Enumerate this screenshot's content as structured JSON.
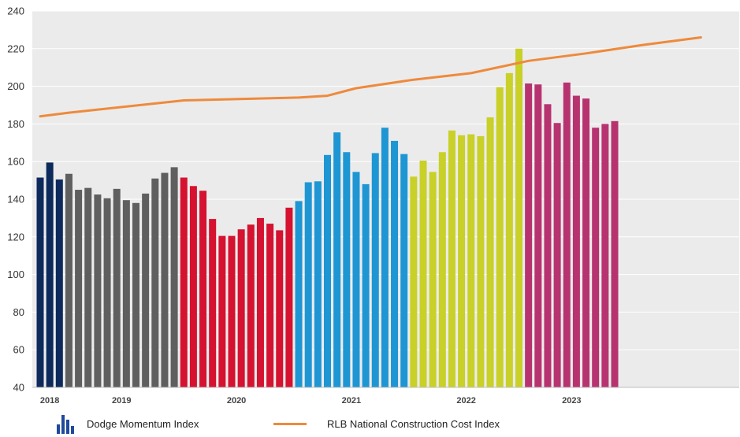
{
  "chart_data": {
    "type": "bar",
    "ylim": [
      40,
      240
    ],
    "yticks": [
      40,
      60,
      80,
      100,
      120,
      140,
      160,
      180,
      200,
      220,
      240
    ],
    "grid": true,
    "legend_position": "bottom-left",
    "year_labels": [
      "2018",
      "2019",
      "2020",
      "2021",
      "2022",
      "2023"
    ],
    "series": [
      {
        "name": "Dodge Momentum Index",
        "type": "bar",
        "groups": [
          {
            "year": "2018",
            "color": "#0d2a5c",
            "values": [
              151.5,
              159.5,
              150.5
            ]
          },
          {
            "year": "2019",
            "color": "#5f5f5f",
            "values": [
              153.5,
              145,
              146,
              142.5,
              140.5,
              145.5,
              139.5,
              138,
              143,
              151,
              154,
              157
            ]
          },
          {
            "year": "2020",
            "color": "#d5122f",
            "values": [
              151.5,
              147,
              144.5,
              129.5,
              120.5,
              120.5,
              124,
              126.5,
              130,
              127,
              123.5,
              135.5
            ]
          },
          {
            "year": "2021",
            "color": "#1e96d4",
            "values": [
              139,
              149,
              149.5,
              163.5,
              175.5,
              165,
              154.5,
              148,
              164.5,
              178,
              171,
              164
            ]
          },
          {
            "year": "2022",
            "color": "#c9d028",
            "values": [
              152,
              160.5,
              154.5,
              165,
              176.5,
              174,
              174.5,
              173.5,
              183.5,
              199.5,
              207,
              220
            ]
          },
          {
            "year": "2023",
            "color": "#b7336f",
            "values": [
              201.5,
              201,
              190.5,
              180.5,
              202,
              195,
              193.5,
              178,
              180,
              181.5
            ]
          }
        ]
      },
      {
        "name": "RLB National Construction Cost Index",
        "type": "line",
        "color": "#ee8a3c",
        "points": [
          {
            "x": 0,
            "y": 184
          },
          {
            "x": 3,
            "y": 186
          },
          {
            "x": 15,
            "y": 192.5
          },
          {
            "x": 27,
            "y": 194
          },
          {
            "x": 30,
            "y": 195
          },
          {
            "x": 33,
            "y": 199
          },
          {
            "x": 39,
            "y": 203.5
          },
          {
            "x": 45,
            "y": 207
          },
          {
            "x": 51,
            "y": 213.5
          },
          {
            "x": 57,
            "y": 217.5
          },
          {
            "x": 63,
            "y": 222
          },
          {
            "x": 69,
            "y": 226
          }
        ]
      }
    ]
  },
  "legend": {
    "bar_label": "Dodge Momentum Index",
    "line_label": "RLB National Construction Cost Index"
  }
}
